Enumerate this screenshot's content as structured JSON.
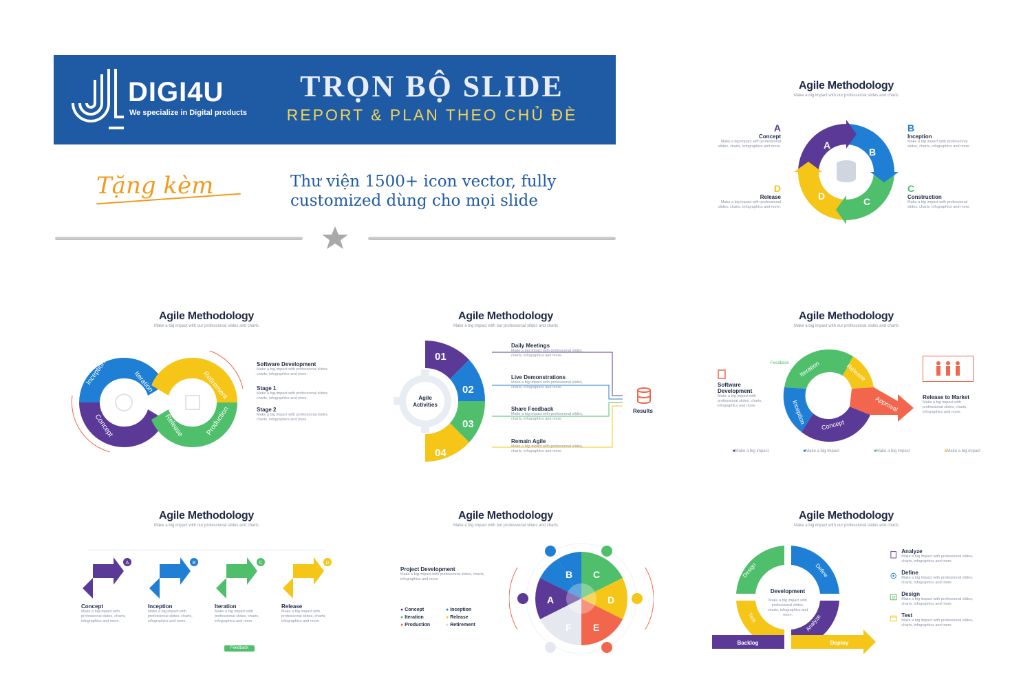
{
  "banner": {
    "brand_name": "DIGI4U",
    "brand_tagline": "We specialize in Digital products",
    "title": "TRỌN BỘ SLIDE",
    "subtitle": "REPORT & PLAN THEO CHỦ ĐÈ"
  },
  "bonus": {
    "label": "Tặng kèm",
    "text_line1": "Thư viện 1500+ icon vector, fully",
    "text_line2": "customized dùng cho mọi slide"
  },
  "slides": {
    "title": "Agile Methodology",
    "subtitle": "Make a big impact with our professional slides and charts",
    "desc_short": "Make a big impact with professional slides, charts, infographics and more.",
    "s1": {
      "A": "A",
      "B": "B",
      "C": "C",
      "D": "D",
      "a_label": "Concept",
      "b_label": "Inception",
      "c_label": "Construction",
      "d_label": "Release"
    },
    "s2": {
      "seg_inception": "Inception",
      "seg_iteration": "Iteration",
      "seg_retirement": "Retirement",
      "seg_production": "Production",
      "seg_release": "Release",
      "seg_concept": "Concept",
      "head": "Software Development",
      "stage1": "Stage 1",
      "stage2": "Stage 2"
    },
    "s3": {
      "n1": "01",
      "n2": "02",
      "n3": "03",
      "n4": "04",
      "center1": "Agile",
      "center2": "Activities",
      "i1": "Daily Meetings",
      "i2": "Live Demonstrations",
      "i3": "Share Feedback",
      "i4": "Remain Agile",
      "results": "Results"
    },
    "s4": {
      "feedback": "Feedback",
      "iteration": "Iteration",
      "release": "Release",
      "inception": "Inception",
      "concept": "Concept",
      "approval": "Approval",
      "left_label1": "Software",
      "left_label2": "Development",
      "right_label": "Release to Market",
      "legend": "Make a big impact"
    },
    "s5": {
      "A": "A",
      "B": "B",
      "C": "C",
      "D": "D",
      "concept": "Concept",
      "inception": "Inception",
      "iteration": "Iteration",
      "release": "Release",
      "feedback": "Feedback"
    },
    "s6": {
      "head": "Project Development",
      "A": "A",
      "B": "B",
      "C": "C",
      "D": "D",
      "E": "E",
      "F": "F",
      "l_concept": "Concept",
      "l_inception": "Inception",
      "l_iteration": "Iteration",
      "l_release": "Release",
      "l_production": "Production",
      "l_retirement": "Retirement"
    },
    "s7": {
      "design": "Design",
      "define": "Define",
      "test": "Test",
      "analyze": "Analyze",
      "center": "Development",
      "backlog": "Backlog",
      "deploy": "Deploy",
      "r_analyze": "Analyze",
      "r_define": "Define",
      "r_design": "Design",
      "r_test": "Test"
    }
  },
  "colors": {
    "purple": "#5b3a97",
    "blue": "#1e7fd4",
    "green": "#4fbf6b",
    "yellow": "#f5c518",
    "orange": "#f2664d",
    "navy": "#1f5aa5",
    "gold": "#f1d35a"
  }
}
